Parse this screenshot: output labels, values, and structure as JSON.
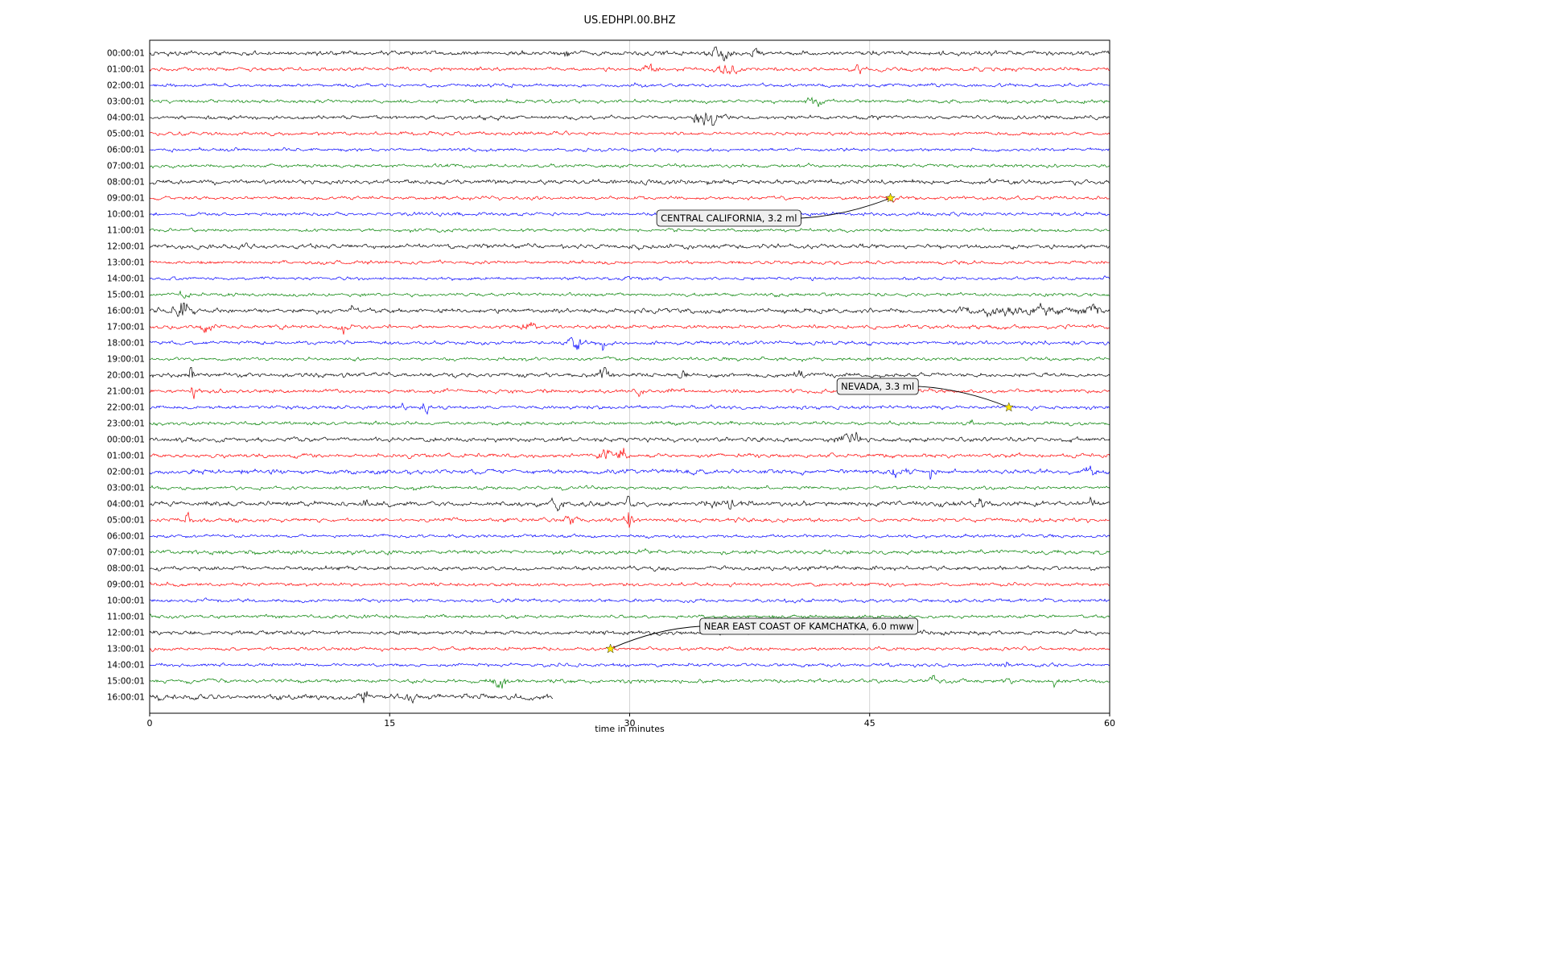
{
  "title": "US.EDHPI.00.BHZ",
  "chart_data": {
    "type": "line",
    "subtype": "seismogram-dayplot-helicorder",
    "station": "US.EDHPI.00.BHZ",
    "xlabel": "time in minutes",
    "x_ticks": [
      0,
      15,
      30,
      45,
      60
    ],
    "x_range": [
      0,
      60
    ],
    "grid": "vertical-only",
    "trace_color_cycle": [
      "#000000",
      "#ff0000",
      "#0000ff",
      "#008000"
    ],
    "event_marker_color": "#ffe800",
    "rows": [
      {
        "label": "00:00:01",
        "noise": 1.15,
        "bursts": [
          {
            "t": 26.0,
            "a": 5,
            "w": 0.15
          },
          {
            "t": 35.7,
            "a": 3.5,
            "w": 0.7
          },
          {
            "t": 37.8,
            "a": 2.5,
            "w": 0.25
          }
        ]
      },
      {
        "label": "01:00:01",
        "noise": 1.0,
        "bursts": [
          {
            "t": 31.3,
            "a": 2.5,
            "w": 0.35
          },
          {
            "t": 36.3,
            "a": 3,
            "w": 0.6
          },
          {
            "t": 44.3,
            "a": 2,
            "w": 0.3
          }
        ]
      },
      {
        "label": "02:00:01",
        "noise": 0.9,
        "bursts": []
      },
      {
        "label": "03:00:01",
        "noise": 0.95,
        "bursts": [
          {
            "t": 41.6,
            "a": 3,
            "w": 0.45
          }
        ]
      },
      {
        "label": "04:00:01",
        "noise": 1.0,
        "bursts": [
          {
            "t": 34.4,
            "a": 4,
            "w": 0.35
          },
          {
            "t": 35.1,
            "a": 6.5,
            "w": 0.45
          }
        ]
      },
      {
        "label": "05:00:01",
        "noise": 0.85,
        "bursts": []
      },
      {
        "label": "06:00:01",
        "noise": 0.85,
        "bursts": []
      },
      {
        "label": "07:00:01",
        "noise": 0.9,
        "bursts": []
      },
      {
        "label": "08:00:01",
        "noise": 1.2,
        "bursts": []
      },
      {
        "label": "09:00:01",
        "noise": 0.9,
        "bursts": [
          {
            "t": 46.3,
            "a": 2,
            "w": 0.25
          }
        ]
      },
      {
        "label": "10:00:01",
        "noise": 0.9,
        "bursts": []
      },
      {
        "label": "11:00:01",
        "noise": 0.85,
        "bursts": []
      },
      {
        "label": "12:00:01",
        "noise": 1.15,
        "bursts": []
      },
      {
        "label": "13:00:01",
        "noise": 0.9,
        "bursts": []
      },
      {
        "label": "14:00:01",
        "noise": 0.85,
        "bursts": []
      },
      {
        "label": "15:00:01",
        "noise": 0.9,
        "bursts": [
          {
            "t": 2.2,
            "a": 2.5,
            "w": 0.3
          }
        ]
      },
      {
        "label": "16:00:01",
        "noise": 1.2,
        "bursts": [
          {
            "t": 2.0,
            "a": 5,
            "w": 0.5
          },
          {
            "t": 12.7,
            "a": 2.5,
            "w": 0.12
          },
          {
            "t": 54.5,
            "a": 1.5,
            "w": 3
          },
          {
            "t": 58.8,
            "a": 1.8,
            "w": 0.8
          }
        ]
      },
      {
        "label": "17:00:01",
        "noise": 1.0,
        "bursts": [
          {
            "t": 3.6,
            "a": 2.5,
            "w": 0.4
          },
          {
            "t": 12.1,
            "a": 2,
            "w": 0.3
          },
          {
            "t": 23.6,
            "a": 2.5,
            "w": 0.45
          }
        ]
      },
      {
        "label": "18:00:01",
        "noise": 1.0,
        "bursts": [
          {
            "t": 26.6,
            "a": 3.5,
            "w": 0.45
          },
          {
            "t": 28.3,
            "a": 3,
            "w": 0.25
          }
        ]
      },
      {
        "label": "19:00:01",
        "noise": 0.9,
        "bursts": []
      },
      {
        "label": "20:00:01",
        "noise": 1.1,
        "bursts": [
          {
            "t": 2.6,
            "a": 8,
            "w": 0.1
          },
          {
            "t": 28.4,
            "a": 2.5,
            "w": 0.45
          },
          {
            "t": 33.3,
            "a": 2,
            "w": 0.3
          },
          {
            "t": 40.6,
            "a": 2,
            "w": 0.3
          }
        ]
      },
      {
        "label": "21:00:01",
        "noise": 1.0,
        "bursts": [
          {
            "t": 2.7,
            "a": 5.5,
            "w": 0.12
          },
          {
            "t": 30.6,
            "a": 2,
            "w": 0.2
          },
          {
            "t": 32.6,
            "a": 2,
            "w": 0.2
          }
        ]
      },
      {
        "label": "22:00:01",
        "noise": 0.95,
        "bursts": [
          {
            "t": 15.8,
            "a": 3.5,
            "w": 0.2
          },
          {
            "t": 17.2,
            "a": 3.5,
            "w": 0.25
          },
          {
            "t": 53.7,
            "a": 1.5,
            "w": 0.3
          }
        ]
      },
      {
        "label": "23:00:01",
        "noise": 0.9,
        "bursts": [
          {
            "t": 51.4,
            "a": 3.5,
            "w": 0.1
          }
        ]
      },
      {
        "label": "00:00:01",
        "noise": 1.15,
        "bursts": [
          {
            "t": 43.7,
            "a": 3,
            "w": 0.8
          }
        ]
      },
      {
        "label": "01:00:01",
        "noise": 1.0,
        "bursts": [
          {
            "t": 28.4,
            "a": 4,
            "w": 0.35
          },
          {
            "t": 29.5,
            "a": 3.5,
            "w": 0.3
          }
        ]
      },
      {
        "label": "02:00:01",
        "noise": 1.25,
        "bursts": [
          {
            "t": 46.6,
            "a": 1.5,
            "w": 0.7
          },
          {
            "t": 48.8,
            "a": 6,
            "w": 0.08
          },
          {
            "t": 58.8,
            "a": 2,
            "w": 0.35
          }
        ]
      },
      {
        "label": "03:00:01",
        "noise": 0.95,
        "bursts": [
          {
            "t": 16.6,
            "a": 2,
            "w": 0.2
          }
        ]
      },
      {
        "label": "04:00:01",
        "noise": 1.25,
        "bursts": [
          {
            "t": 13.4,
            "a": 2,
            "w": 0.2
          },
          {
            "t": 25.4,
            "a": 1.5,
            "w": 0.5
          },
          {
            "t": 29.9,
            "a": 4.5,
            "w": 0.1
          },
          {
            "t": 36.1,
            "a": 1.8,
            "w": 1.0
          },
          {
            "t": 52.1,
            "a": 1.5,
            "w": 0.5
          },
          {
            "t": 58.9,
            "a": 1.8,
            "w": 0.3
          }
        ]
      },
      {
        "label": "05:00:01",
        "noise": 1.0,
        "bursts": [
          {
            "t": 2.4,
            "a": 2,
            "w": 0.3
          },
          {
            "t": 26.3,
            "a": 2,
            "w": 0.4
          },
          {
            "t": 29.9,
            "a": 8,
            "w": 0.22
          }
        ]
      },
      {
        "label": "06:00:01",
        "noise": 0.85,
        "bursts": []
      },
      {
        "label": "07:00:01",
        "noise": 1.1,
        "bursts": []
      },
      {
        "label": "08:00:01",
        "noise": 1.1,
        "bursts": []
      },
      {
        "label": "09:00:01",
        "noise": 0.9,
        "bursts": []
      },
      {
        "label": "10:00:01",
        "noise": 0.9,
        "bursts": []
      },
      {
        "label": "11:00:01",
        "noise": 0.9,
        "bursts": []
      },
      {
        "label": "12:00:01",
        "noise": 1.1,
        "bursts": []
      },
      {
        "label": "13:00:01",
        "noise": 0.9,
        "bursts": [
          {
            "t": 28.8,
            "a": 1.2,
            "w": 0.3
          }
        ]
      },
      {
        "label": "14:00:01",
        "noise": 0.9,
        "bursts": [
          {
            "t": 53.6,
            "a": 1.8,
            "w": 0.25
          }
        ]
      },
      {
        "label": "15:00:01",
        "noise": 1.0,
        "bursts": [
          {
            "t": 21.9,
            "a": 5,
            "w": 0.45
          },
          {
            "t": 48.9,
            "a": 2,
            "w": 0.2
          },
          {
            "t": 53.7,
            "a": 2.5,
            "w": 0.12
          },
          {
            "t": 56.6,
            "a": 2,
            "w": 0.2
          }
        ]
      },
      {
        "label": "16:00:01",
        "noise": 1.45,
        "bursts": [
          {
            "t": 13.5,
            "a": 2.5,
            "w": 0.25
          },
          {
            "t": 16.3,
            "a": 2,
            "w": 0.25
          }
        ],
        "end": 25.2
      }
    ],
    "annotations": [
      {
        "text": "CENTRAL CALIFORNIA, 3.2 ml",
        "star_row": 9,
        "star_t": 46.3,
        "label_row": 10.25,
        "label_t": 36.2
      },
      {
        "text": "NEVADA, 3.3 ml",
        "star_row": 22,
        "star_t": 53.7,
        "label_row": 20.7,
        "label_t": 45.5
      },
      {
        "text": "NEAR EAST COAST OF KAMCHATKA, 6.0 mww",
        "star_row": 37,
        "star_t": 28.8,
        "label_row": 35.6,
        "label_t": 41.2
      }
    ]
  }
}
